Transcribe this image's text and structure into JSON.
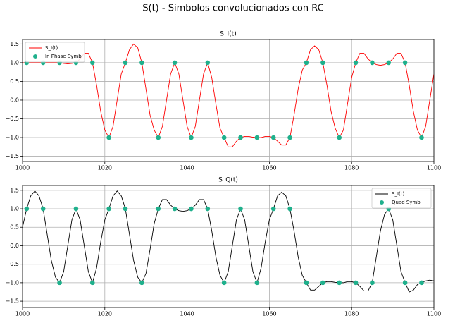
{
  "title": "S(t) - Simbolos convolucionados con RC",
  "chart_data": [
    {
      "type": "line",
      "title": "S_I(t)",
      "legend": "upper left",
      "grid": true,
      "xlim": [
        1000,
        1100
      ],
      "xticks": [
        1000,
        1020,
        1040,
        1060,
        1080,
        1100
      ],
      "ylim": [
        -1.64,
        1.62
      ],
      "yticks": [
        {
          "value": -1.5,
          "label": "−1.5"
        },
        {
          "value": -1.0,
          "label": "−1.0"
        },
        {
          "value": -0.5,
          "label": "−0.5"
        },
        {
          "value": 0.0,
          "label": "0.0"
        },
        {
          "value": 0.5,
          "label": "0.5"
        },
        {
          "value": 1.0,
          "label": "1.0"
        },
        {
          "value": 1.5,
          "label": "1.5"
        }
      ],
      "series": [
        {
          "name": "S_I(t)",
          "type": "line",
          "color": "#ff0000",
          "x": [
            1000,
            1001,
            1002,
            1003,
            1004,
            1005,
            1006,
            1007,
            1008,
            1009,
            1010,
            1011,
            1012,
            1013,
            1014,
            1015,
            1016,
            1017,
            1018,
            1019,
            1020,
            1021,
            1022,
            1023,
            1024,
            1025,
            1026,
            1027,
            1028,
            1029,
            1030,
            1031,
            1032,
            1033,
            1034,
            1035,
            1036,
            1037,
            1038,
            1039,
            1040,
            1041,
            1042,
            1043,
            1044,
            1045,
            1046,
            1047,
            1048,
            1049,
            1050,
            1051,
            1052,
            1053,
            1054,
            1055,
            1056,
            1057,
            1058,
            1059,
            1060,
            1061,
            1062,
            1063,
            1064,
            1065,
            1066,
            1067,
            1068,
            1069,
            1070,
            1071,
            1072,
            1073,
            1074,
            1075,
            1076,
            1077,
            1078,
            1079,
            1080,
            1081,
            1082,
            1083,
            1084,
            1085,
            1086,
            1087,
            1088,
            1089,
            1090,
            1091,
            1092,
            1093,
            1094,
            1095,
            1096,
            1097,
            1098,
            1099,
            1100
          ],
          "values": [
            1.0,
            1,
            1,
            1,
            1,
            1,
            1,
            1,
            1,
            1,
            0.98,
            0.97,
            0.98,
            1.0,
            1.1,
            1.25,
            1.25,
            1.0,
            0.4,
            -0.3,
            -0.8,
            -1.0,
            -0.7,
            0.0,
            0.7,
            1.0,
            1.35,
            1.5,
            1.4,
            1.0,
            0.3,
            -0.4,
            -0.8,
            -1.0,
            -0.7,
            0.0,
            0.7,
            1.0,
            0.7,
            0.0,
            -0.7,
            -1.0,
            -0.7,
            0.0,
            0.7,
            1.0,
            0.6,
            -0.1,
            -0.75,
            -1.0,
            -1.25,
            -1.25,
            -1.1,
            -1.0,
            -0.97,
            -0.97,
            -0.99,
            -1.0,
            -1.0,
            -0.97,
            -0.97,
            -1.0,
            -1.1,
            -1.2,
            -1.2,
            -1.0,
            -0.4,
            0.3,
            0.8,
            1.0,
            1.35,
            1.45,
            1.35,
            1.0,
            0.4,
            -0.3,
            -0.75,
            -1.0,
            -0.8,
            -0.1,
            0.6,
            1.0,
            1.25,
            1.25,
            1.1,
            1.0,
            0.95,
            0.93,
            0.95,
            1.0,
            1.1,
            1.25,
            1.25,
            1.0,
            0.4,
            -0.3,
            -0.8,
            -1.0,
            -0.7,
            0.0,
            0.7
          ]
        },
        {
          "name": "In Phase Symb",
          "type": "scatter",
          "color": "#1fb08c",
          "x": [
            1001,
            1005,
            1009,
            1013,
            1017,
            1021,
            1025,
            1029,
            1033,
            1037,
            1041,
            1045,
            1049,
            1053,
            1057,
            1061,
            1065,
            1069,
            1073,
            1077,
            1081,
            1085,
            1089,
            1093,
            1097
          ],
          "values": [
            1,
            1,
            1,
            1,
            1,
            -1,
            1,
            1,
            -1,
            1,
            -1,
            1,
            -1,
            -1,
            -1,
            -1,
            -1,
            1,
            1,
            -1,
            1,
            1,
            1,
            1,
            -1
          ]
        }
      ]
    },
    {
      "type": "line",
      "title": "S_Q(t)",
      "legend": "upper right",
      "grid": true,
      "xlim": [
        1000,
        1100
      ],
      "xticks": [
        1000,
        1020,
        1040,
        1060,
        1080,
        1100
      ],
      "ylim": [
        -1.67,
        1.63
      ],
      "yticks": [
        {
          "value": -1.5,
          "label": "−1.5"
        },
        {
          "value": -1.0,
          "label": "−1.0"
        },
        {
          "value": -0.5,
          "label": "−0.5"
        },
        {
          "value": 0.0,
          "label": "0.0"
        },
        {
          "value": 0.5,
          "label": "0.5"
        },
        {
          "value": 1.0,
          "label": "1.0"
        },
        {
          "value": 1.5,
          "label": "1.5"
        }
      ],
      "series": [
        {
          "name": "S_I(t)",
          "type": "line",
          "color": "#000000",
          "x": [
            1000,
            1001,
            1002,
            1003,
            1004,
            1005,
            1006,
            1007,
            1008,
            1009,
            1010,
            1011,
            1012,
            1013,
            1014,
            1015,
            1016,
            1017,
            1018,
            1019,
            1020,
            1021,
            1022,
            1023,
            1024,
            1025,
            1026,
            1027,
            1028,
            1029,
            1030,
            1031,
            1032,
            1033,
            1034,
            1035,
            1036,
            1037,
            1038,
            1039,
            1040,
            1041,
            1042,
            1043,
            1044,
            1045,
            1046,
            1047,
            1048,
            1049,
            1050,
            1051,
            1052,
            1053,
            1054,
            1055,
            1056,
            1057,
            1058,
            1059,
            1060,
            1061,
            1062,
            1063,
            1064,
            1065,
            1066,
            1067,
            1068,
            1069,
            1070,
            1071,
            1072,
            1073,
            1074,
            1075,
            1076,
            1077,
            1078,
            1079,
            1080,
            1081,
            1082,
            1083,
            1084,
            1085,
            1086,
            1087,
            1088,
            1089,
            1090,
            1091,
            1092,
            1093,
            1094,
            1095,
            1096,
            1097,
            1098,
            1099,
            1100
          ],
          "values": [
            0.5,
            1.0,
            1.35,
            1.48,
            1.35,
            1.0,
            0.3,
            -0.4,
            -0.85,
            -1.0,
            -0.7,
            0.0,
            0.7,
            1.0,
            0.7,
            0.0,
            -0.7,
            -1.0,
            -0.6,
            0.1,
            0.7,
            1.0,
            1.35,
            1.48,
            1.35,
            1.0,
            0.3,
            -0.4,
            -0.85,
            -1.0,
            -0.75,
            -0.1,
            0.6,
            1.0,
            1.25,
            1.25,
            1.1,
            1.0,
            0.95,
            0.93,
            0.95,
            1.0,
            1.1,
            1.25,
            1.25,
            1.0,
            0.4,
            -0.3,
            -0.8,
            -1.0,
            -0.7,
            0.0,
            0.7,
            1.0,
            0.7,
            0.0,
            -0.7,
            -1.0,
            -0.6,
            0.1,
            0.7,
            1.0,
            1.35,
            1.45,
            1.35,
            1.0,
            0.4,
            -0.3,
            -0.8,
            -1.0,
            -1.2,
            -1.2,
            -1.1,
            -1.0,
            -0.97,
            -0.97,
            -0.99,
            -1.0,
            -1.0,
            -0.97,
            -0.97,
            -1.0,
            -1.1,
            -1.22,
            -1.22,
            -1.0,
            -0.3,
            0.4,
            0.85,
            1.0,
            0.7,
            0.0,
            -0.7,
            -1.0,
            -1.25,
            -1.2,
            -1.05,
            -1.0,
            -0.95,
            -0.93,
            -0.95
          ]
        },
        {
          "name": "Quad Symb",
          "type": "scatter",
          "color": "#1fb08c",
          "x": [
            1001,
            1005,
            1009,
            1013,
            1017,
            1021,
            1025,
            1029,
            1033,
            1037,
            1041,
            1045,
            1049,
            1053,
            1057,
            1061,
            1065,
            1069,
            1073,
            1077,
            1081,
            1085,
            1089,
            1093,
            1097
          ],
          "values": [
            1,
            1,
            -1,
            1,
            -1,
            1,
            1,
            -1,
            1,
            1,
            1,
            1,
            -1,
            1,
            -1,
            1,
            1,
            -1,
            -1,
            -1,
            -1,
            -1,
            1,
            -1,
            -1
          ]
        }
      ]
    }
  ]
}
